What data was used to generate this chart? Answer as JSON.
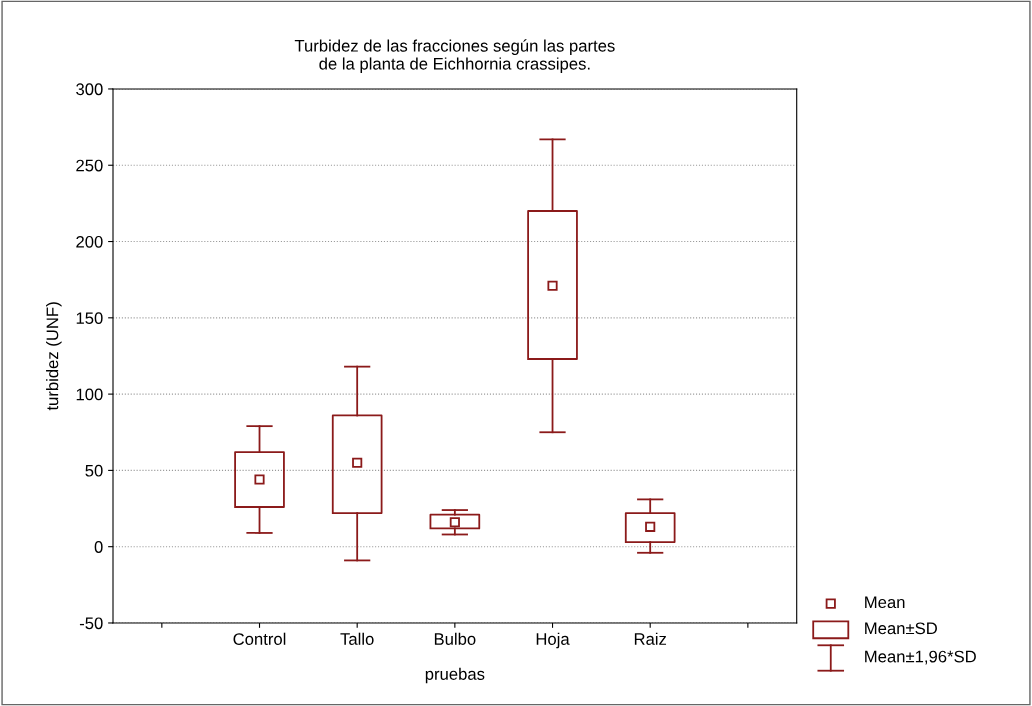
{
  "chart_data": {
    "type": "box",
    "title": "Turbidez de las fracciones según las partes\nde la planta de Eichhornia crassipes.",
    "xlabel": "pruebas",
    "ylabel": "turbidez (UNF)",
    "categories": [
      null,
      "Control",
      "Tallo",
      "Bulbo",
      "Hoja",
      "Raiz",
      null
    ],
    "boxes": [
      null,
      {
        "low": 9,
        "q1": 26,
        "median": 44,
        "q3": 62,
        "high": 79
      },
      {
        "low": -9,
        "q1": 22,
        "median": 55,
        "q3": 86,
        "high": 118
      },
      {
        "low": 8,
        "q1": 12,
        "median": 16,
        "q3": 21,
        "high": 24
      },
      {
        "low": 75,
        "q1": 123,
        "median": 171,
        "q3": 220,
        "high": 267
      },
      {
        "low": -4,
        "q1": 3,
        "median": 13,
        "q3": 22,
        "high": 31
      },
      null
    ],
    "color": "#8b1a1a",
    "ylim": [
      -50,
      300
    ],
    "yticks": [
      -50,
      0,
      50,
      100,
      150,
      200,
      250,
      300
    ],
    "grid": "y",
    "marker": "square",
    "annotations": [
      "Mean",
      "Mean±SD",
      "Mean±1,96*SD"
    ]
  }
}
